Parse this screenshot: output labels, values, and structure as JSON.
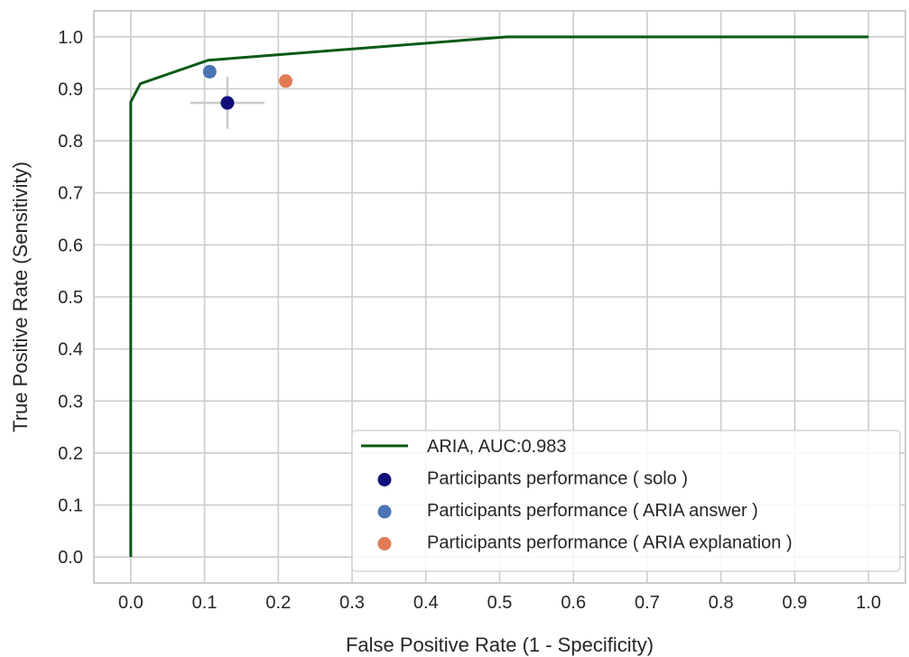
{
  "chart_data": {
    "type": "line",
    "title": "",
    "xlabel": "False Positive Rate  (1 - Specificity)",
    "ylabel": "True Positive Rate  (Sensitivity)",
    "xlim": [
      -0.05,
      1.05
    ],
    "ylim": [
      -0.05,
      1.05
    ],
    "x_ticks": [
      0.0,
      0.1,
      0.2,
      0.3,
      0.4,
      0.5,
      0.6,
      0.7,
      0.8,
      0.9,
      1.0
    ],
    "y_ticks": [
      0.0,
      0.1,
      0.2,
      0.3,
      0.4,
      0.5,
      0.6,
      0.7,
      0.8,
      0.9,
      1.0
    ],
    "x_tick_labels": [
      "0.0",
      "0.1",
      "0.2",
      "0.3",
      "0.4",
      "0.5",
      "0.6",
      "0.7",
      "0.8",
      "0.9",
      "1.0"
    ],
    "y_tick_labels": [
      "0.0",
      "0.1",
      "0.2",
      "0.3",
      "0.4",
      "0.5",
      "0.6",
      "0.7",
      "0.8",
      "0.9",
      "1.0"
    ],
    "grid": true,
    "legend_position": "lower-right",
    "roc_curve": {
      "name": "ARIA, AUC:0.983",
      "color": "#0b5a14",
      "x": [
        0.0,
        0.0,
        0.013,
        0.105,
        0.51,
        1.0
      ],
      "y": [
        0.0,
        0.875,
        0.91,
        0.955,
        1.0,
        1.0
      ]
    },
    "points": [
      {
        "name": "Participants performance ( solo )",
        "color": "#0f0f7a",
        "x": 0.131,
        "y": 0.873,
        "x_error": 0.05,
        "y_error": 0.05
      },
      {
        "name": "Participants performance ( ARIA answer )",
        "color": "#4a74b4",
        "x": 0.107,
        "y": 0.933
      },
      {
        "name": "Participants performance ( ARIA explanation )",
        "color": "#e07b54",
        "x": 0.21,
        "y": 0.915
      }
    ],
    "errorbar_color": "#c8c8c8",
    "grid_color": "#cccccc",
    "frame_color": "#cccccc"
  }
}
